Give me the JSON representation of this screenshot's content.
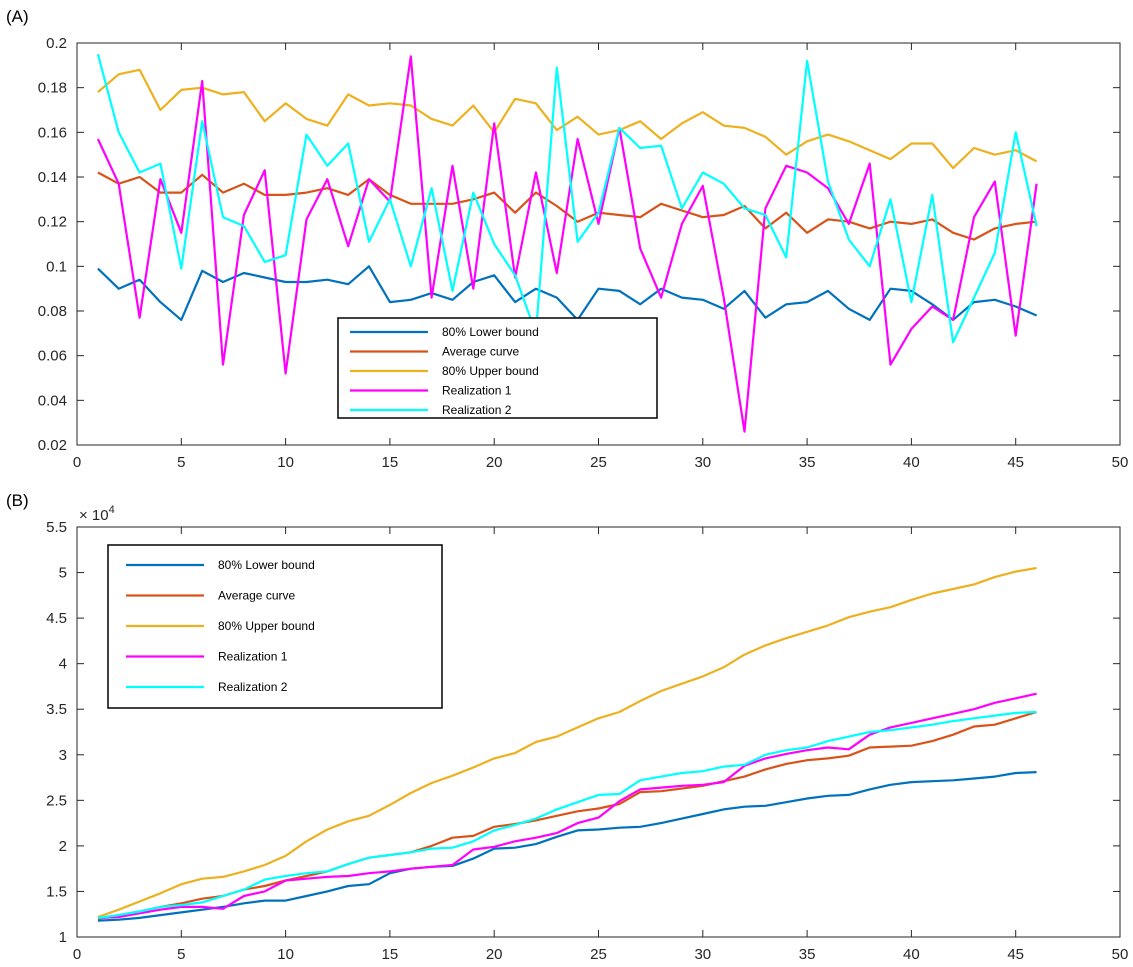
{
  "chart_data": [
    {
      "type": "line",
      "panel_label": "(A)",
      "title": "",
      "xlabel": "",
      "ylabel": "",
      "xlim": [
        0,
        50
      ],
      "ylim": [
        0.02,
        0.2
      ],
      "xticks": [
        0,
        5,
        10,
        15,
        20,
        25,
        30,
        35,
        40,
        45,
        50
      ],
      "yticks": [
        0.02,
        0.04,
        0.06,
        0.08,
        0.1,
        0.12,
        0.14,
        0.16,
        0.18,
        0.2
      ],
      "ytick_labels": [
        "0.02",
        "0.04",
        "0.06",
        "0.08",
        "0.1",
        "0.12",
        "0.14",
        "0.16",
        "0.18",
        "0.2"
      ],
      "exponent_label": "",
      "grid": false,
      "legend_position": "bottom-center",
      "x": [
        1,
        2,
        3,
        4,
        5,
        6,
        7,
        8,
        9,
        10,
        11,
        12,
        13,
        14,
        15,
        16,
        17,
        18,
        19,
        20,
        21,
        22,
        23,
        24,
        25,
        26,
        27,
        28,
        29,
        30,
        31,
        32,
        33,
        34,
        35,
        36,
        37,
        38,
        39,
        40,
        41,
        42,
        43,
        44,
        45,
        46
      ],
      "series": [
        {
          "name": "80% Lower bound",
          "color": "#0072BD",
          "values": [
            0.099,
            0.09,
            0.094,
            0.084,
            0.076,
            0.098,
            0.093,
            0.097,
            0.095,
            0.093,
            0.093,
            0.094,
            0.092,
            0.1,
            0.084,
            0.085,
            0.088,
            0.085,
            0.093,
            0.096,
            0.084,
            0.09,
            0.086,
            0.076,
            0.09,
            0.089,
            0.083,
            0.09,
            0.086,
            0.085,
            0.081,
            0.089,
            0.077,
            0.083,
            0.084,
            0.089,
            0.081,
            0.076,
            0.09,
            0.089,
            0.083,
            0.076,
            0.084,
            0.085,
            0.082,
            0.078
          ]
        },
        {
          "name": "Average curve",
          "color": "#D95319",
          "values": [
            0.142,
            0.137,
            0.14,
            0.133,
            0.133,
            0.141,
            0.133,
            0.137,
            0.132,
            0.132,
            0.133,
            0.135,
            0.132,
            0.139,
            0.132,
            0.128,
            0.128,
            0.128,
            0.13,
            0.133,
            0.124,
            0.133,
            0.127,
            0.12,
            0.124,
            0.123,
            0.122,
            0.128,
            0.125,
            0.122,
            0.123,
            0.127,
            0.117,
            0.124,
            0.115,
            0.121,
            0.12,
            0.117,
            0.12,
            0.119,
            0.121,
            0.115,
            0.112,
            0.117,
            0.119,
            0.12
          ]
        },
        {
          "name": "80% Upper bound",
          "color": "#EDB120",
          "values": [
            0.178,
            0.186,
            0.188,
            0.17,
            0.179,
            0.18,
            0.177,
            0.178,
            0.165,
            0.173,
            0.166,
            0.163,
            0.177,
            0.172,
            0.173,
            0.172,
            0.166,
            0.163,
            0.172,
            0.16,
            0.175,
            0.173,
            0.161,
            0.167,
            0.159,
            0.161,
            0.165,
            0.157,
            0.164,
            0.169,
            0.163,
            0.162,
            0.158,
            0.15,
            0.156,
            0.159,
            0.156,
            0.152,
            0.148,
            0.155,
            0.155,
            0.144,
            0.153,
            0.15,
            0.152,
            0.147
          ]
        },
        {
          "name": "Realization 1",
          "color": "#FF00FF",
          "values": [
            0.157,
            0.137,
            0.077,
            0.139,
            0.115,
            0.183,
            0.056,
            0.123,
            0.143,
            0.052,
            0.121,
            0.139,
            0.109,
            0.139,
            0.129,
            0.194,
            0.086,
            0.145,
            0.09,
            0.164,
            0.095,
            0.142,
            0.097,
            0.157,
            0.119,
            0.162,
            0.108,
            0.086,
            0.119,
            0.136,
            0.086,
            0.026,
            0.126,
            0.145,
            0.142,
            0.135,
            0.119,
            0.146,
            0.056,
            0.072,
            0.082,
            0.076,
            0.122,
            0.138,
            0.069,
            0.137
          ]
        },
        {
          "name": "Realization 2",
          "color": "#00FFFF",
          "values": [
            0.195,
            0.16,
            0.142,
            0.146,
            0.099,
            0.165,
            0.122,
            0.118,
            0.102,
            0.105,
            0.159,
            0.145,
            0.155,
            0.111,
            0.13,
            0.1,
            0.135,
            0.089,
            0.133,
            0.11,
            0.096,
            0.07,
            0.189,
            0.111,
            0.124,
            0.162,
            0.153,
            0.154,
            0.126,
            0.142,
            0.137,
            0.126,
            0.123,
            0.104,
            0.192,
            0.138,
            0.112,
            0.1,
            0.13,
            0.084,
            0.132,
            0.066,
            0.086,
            0.106,
            0.16,
            0.118
          ]
        }
      ]
    },
    {
      "type": "line",
      "panel_label": "(B)",
      "title": "",
      "xlabel": "",
      "ylabel": "",
      "xlim": [
        0,
        50
      ],
      "ylim": [
        1,
        5.5
      ],
      "xticks": [
        0,
        5,
        10,
        15,
        20,
        25,
        30,
        35,
        40,
        45,
        50
      ],
      "yticks": [
        1,
        1.5,
        2,
        2.5,
        3,
        3.5,
        4,
        4.5,
        5,
        5.5
      ],
      "ytick_labels": [
        "1",
        "1.5",
        "2",
        "2.5",
        "3",
        "3.5",
        "4",
        "4.5",
        "5",
        "5.5"
      ],
      "exponent_label": "× 10",
      "exponent_power": "4",
      "grid": false,
      "legend_position": "top-left",
      "x": [
        1,
        2,
        3,
        4,
        5,
        6,
        7,
        8,
        9,
        10,
        11,
        12,
        13,
        14,
        15,
        16,
        17,
        18,
        19,
        20,
        21,
        22,
        23,
        24,
        25,
        26,
        27,
        28,
        29,
        30,
        31,
        32,
        33,
        34,
        35,
        36,
        37,
        38,
        39,
        40,
        41,
        42,
        43,
        44,
        45,
        46
      ],
      "series": [
        {
          "name": "80% Lower bound",
          "color": "#0072BD",
          "values": [
            1.18,
            1.19,
            1.21,
            1.24,
            1.27,
            1.3,
            1.33,
            1.37,
            1.4,
            1.4,
            1.45,
            1.5,
            1.56,
            1.58,
            1.7,
            1.75,
            1.77,
            1.78,
            1.86,
            1.97,
            1.98,
            2.02,
            2.1,
            2.17,
            2.18,
            2.2,
            2.21,
            2.25,
            2.3,
            2.35,
            2.4,
            2.43,
            2.44,
            2.48,
            2.52,
            2.55,
            2.56,
            2.62,
            2.67,
            2.7,
            2.71,
            2.72,
            2.74,
            2.76,
            2.8,
            2.81
          ]
        },
        {
          "name": "Average curve",
          "color": "#D95319",
          "values": [
            1.2,
            1.24,
            1.28,
            1.33,
            1.37,
            1.42,
            1.45,
            1.52,
            1.56,
            1.62,
            1.67,
            1.72,
            1.8,
            1.87,
            1.9,
            1.93,
            2.0,
            2.09,
            2.11,
            2.21,
            2.24,
            2.28,
            2.33,
            2.38,
            2.41,
            2.46,
            2.59,
            2.6,
            2.63,
            2.66,
            2.71,
            2.76,
            2.84,
            2.9,
            2.94,
            2.96,
            2.99,
            3.08,
            3.09,
            3.1,
            3.15,
            3.22,
            3.31,
            3.33,
            3.4,
            3.47
          ]
        },
        {
          "name": "80% Upper bound",
          "color": "#EDB120",
          "values": [
            1.22,
            1.3,
            1.39,
            1.48,
            1.58,
            1.64,
            1.66,
            1.72,
            1.79,
            1.89,
            2.05,
            2.18,
            2.27,
            2.33,
            2.45,
            2.58,
            2.69,
            2.77,
            2.86,
            2.96,
            3.02,
            3.14,
            3.2,
            3.3,
            3.4,
            3.47,
            3.59,
            3.7,
            3.78,
            3.86,
            3.96,
            4.1,
            4.2,
            4.28,
            4.35,
            4.42,
            4.51,
            4.57,
            4.62,
            4.7,
            4.77,
            4.82,
            4.87,
            4.95,
            5.01,
            5.05
          ]
        },
        {
          "name": "Realization 1",
          "color": "#FF00FF",
          "values": [
            1.21,
            1.22,
            1.26,
            1.3,
            1.33,
            1.33,
            1.31,
            1.45,
            1.5,
            1.62,
            1.64,
            1.66,
            1.67,
            1.7,
            1.72,
            1.75,
            1.77,
            1.79,
            1.96,
            1.99,
            2.05,
            2.09,
            2.14,
            2.25,
            2.31,
            2.49,
            2.62,
            2.64,
            2.66,
            2.67,
            2.7,
            2.88,
            2.96,
            3.01,
            3.05,
            3.08,
            3.06,
            3.22,
            3.3,
            3.35,
            3.4,
            3.45,
            3.5,
            3.57,
            3.62,
            3.67
          ]
        },
        {
          "name": "Realization 2",
          "color": "#00FFFF",
          "values": [
            1.21,
            1.24,
            1.28,
            1.33,
            1.35,
            1.38,
            1.45,
            1.52,
            1.63,
            1.67,
            1.7,
            1.72,
            1.8,
            1.87,
            1.9,
            1.93,
            1.97,
            1.98,
            2.05,
            2.17,
            2.23,
            2.3,
            2.4,
            2.48,
            2.56,
            2.57,
            2.72,
            2.76,
            2.8,
            2.82,
            2.87,
            2.89,
            3.0,
            3.05,
            3.08,
            3.15,
            3.2,
            3.25,
            3.27,
            3.3,
            3.33,
            3.37,
            3.4,
            3.43,
            3.46,
            3.47
          ]
        }
      ]
    }
  ]
}
